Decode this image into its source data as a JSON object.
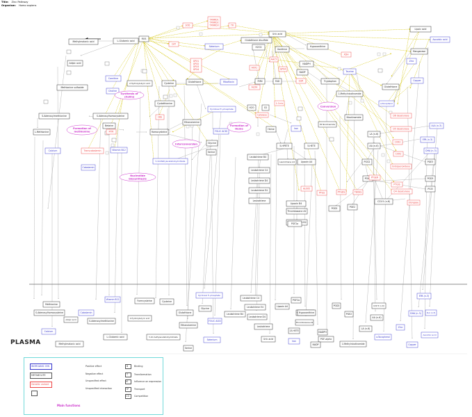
{
  "header": {
    "title_label": "Title:",
    "title_value": "Zinc Pathway",
    "organism_label": "Organism:",
    "organism_value": "Homo sapiens"
  },
  "colors": {
    "metabolite": "#222222",
    "inorganic_ion": "#3333cc",
    "genetic": "#ee4444",
    "function": "#cc33cc",
    "edge_gray": "#999999",
    "edge_gold": "#d4c400",
    "edge_black": "#000000",
    "divider": "#666666",
    "legend_border": "#6fd9d9"
  },
  "plasma_label": "PLASMA",
  "nodes": [
    {
      "id": "methylmalonic",
      "label": "Methylmalonic acid",
      "type": "met"
    },
    {
      "id": "lglutamic",
      "label": "L-Glutamic acid",
      "type": "met"
    },
    {
      "id": "ros",
      "label": "ROS",
      "type": "met"
    },
    {
      "id": "sod",
      "label": "SOD",
      "type": "gene"
    },
    {
      "id": "tr",
      "label": "TR",
      "type": "gene"
    },
    {
      "id": "txnrd",
      "label": "TXNRD1 / TXNRD2 / TXNRD3",
      "type": "gene"
    },
    {
      "id": "cat",
      "label": "CAT",
      "type": "gene"
    },
    {
      "id": "gpx",
      "label": "GPX1 / GPX2 / GPX3 / GPX4",
      "type": "gene"
    },
    {
      "id": "selenium",
      "label": "Selenium",
      "type": "ion"
    },
    {
      "id": "gsh_disulfide",
      "label": "Glutathione disulfide",
      "type": "met"
    },
    {
      "id": "uric",
      "label": "Uric acid",
      "type": "met"
    },
    {
      "id": "h2o2",
      "label": "H2O2",
      "type": "met"
    },
    {
      "id": "xanthine",
      "label": "Xanthine",
      "type": "met"
    },
    {
      "id": "hypoxanthine",
      "label": "Hypoxanthine",
      "type": "met"
    },
    {
      "id": "xdh",
      "label": "XDH",
      "type": "gene"
    },
    {
      "id": "lipoic",
      "label": "Lipoic acid",
      "type": "met"
    },
    {
      "id": "ascorbic_top",
      "label": "Ascorbic acid",
      "type": "ion"
    },
    {
      "id": "manganese",
      "label": "Manganese",
      "type": "met"
    },
    {
      "id": "zinc",
      "label": "Zinc",
      "type": "ion"
    },
    {
      "id": "copper",
      "label": "Copper",
      "type": "ion"
    },
    {
      "id": "adipic",
      "label": "Adipic acid",
      "type": "met"
    },
    {
      "id": "carnitine",
      "label": "Carnitine",
      "type": "ion"
    },
    {
      "id": "choline",
      "label": "Choline",
      "type": "ion"
    },
    {
      "id": "methionine_sulfoxide",
      "label": "Methionine sulfoxide",
      "type": "met"
    },
    {
      "id": "hydroxybutyric",
      "label": "2-Hydroxybutyric acid",
      "type": "met"
    },
    {
      "id": "cysteine",
      "label": "Cysteine",
      "type": "met"
    },
    {
      "id": "glutathione",
      "label": "Glutathione",
      "type": "met"
    },
    {
      "id": "riboflavin",
      "label": "Riboflavin",
      "type": "ion"
    },
    {
      "id": "fmn",
      "label": "FMN",
      "type": "met"
    },
    {
      "id": "fad",
      "label": "FAD",
      "type": "met"
    },
    {
      "id": "nadph",
      "label": "NADPH",
      "type": "met"
    },
    {
      "id": "nadp",
      "label": "NADP",
      "type": "met"
    },
    {
      "id": "taurine",
      "label": "Taurine",
      "type": "ion"
    },
    {
      "id": "gsr",
      "label": "GSR",
      "type": "gene"
    },
    {
      "id": "aox1",
      "label": "AOX1",
      "type": "gene"
    },
    {
      "id": "aldh",
      "label": "ALDH",
      "type": "gene"
    },
    {
      "id": "ahcy",
      "label": "AHCY",
      "type": "gene"
    },
    {
      "id": "gpx4",
      "label": "GPX4",
      "type": "gene"
    },
    {
      "id": "tryptophan",
      "label": "Tryptophan",
      "type": "met"
    },
    {
      "id": "methylnicotinamide",
      "label": "1-Methylnicotinamide",
      "type": "met"
    },
    {
      "id": "tocopherol",
      "label": "a-Tocopherol",
      "type": "ion"
    },
    {
      "id": "glutathione_b",
      "label": "Glutathione",
      "type": "met"
    },
    {
      "id": "sam",
      "label": "S-Adenosylmethionine",
      "type": "met"
    },
    {
      "id": "sah",
      "label": "S-Adenosylhomocysteine",
      "type": "met"
    },
    {
      "id": "cystathionine",
      "label": "Cystathionine",
      "type": "met"
    },
    {
      "id": "betaine",
      "label": "Betaine",
      "type": "met"
    },
    {
      "id": "pyridoxal",
      "label": "Pyridoxal 5'-phosphate",
      "type": "ion"
    },
    {
      "id": "h2o",
      "label": "H2O",
      "type": "met"
    },
    {
      "id": "o2",
      "label": "O2",
      "type": "met"
    },
    {
      "id": "catalase",
      "label": "Catalase",
      "type": "gene"
    },
    {
      "id": "p2",
      "label": "P2 Nicotinamide",
      "type": "met"
    },
    {
      "id": "nicotinamide",
      "label": "Nicotinamide",
      "type": "met"
    },
    {
      "id": "ibeta",
      "label": "IL-1beta",
      "type": "gene"
    },
    {
      "id": "lmethionine",
      "label": "L-Methionine",
      "type": "met"
    },
    {
      "id": "mtr",
      "label": "MTR",
      "type": "gene"
    },
    {
      "id": "homocysteine",
      "label": "Homocysteine",
      "type": "met"
    },
    {
      "id": "cbs",
      "label": "CBS",
      "type": "gene"
    },
    {
      "id": "ethanolamine",
      "label": "Ethanolamine",
      "type": "met"
    },
    {
      "id": "folic",
      "label": "FOLIC ACID",
      "type": "ion"
    },
    {
      "id": "heme",
      "label": "Heme",
      "type": "met"
    },
    {
      "id": "iron",
      "label": "Iron",
      "type": "ion"
    },
    {
      "id": "hpete5",
      "label": "5-HPETE",
      "type": "met"
    },
    {
      "id": "hete5",
      "label": "5-HETE",
      "type": "met"
    },
    {
      "id": "aa",
      "label": "AA (n-6)",
      "type": "met"
    },
    {
      "id": "la",
      "label": "LA (n-6)",
      "type": "met"
    },
    {
      "id": "ala",
      "label": "ALA (n-3)",
      "type": "ion"
    },
    {
      "id": "epa",
      "label": "EPA (n-3)",
      "type": "ion"
    },
    {
      "id": "dha",
      "label": "DHA (n-3)",
      "type": "ion"
    },
    {
      "id": "calcium",
      "label": "Calcium",
      "type": "ion"
    },
    {
      "id": "transcobalamin",
      "label": "Transcobalamin",
      "type": "gene"
    },
    {
      "id": "b12",
      "label": "Vitamin B12",
      "type": "ion"
    },
    {
      "id": "cobalamin",
      "label": "Cobalamin",
      "type": "ion"
    },
    {
      "id": "glycine",
      "label": "Glycine",
      "type": "met"
    },
    {
      "id": "serine",
      "label": "Serine",
      "type": "met"
    },
    {
      "id": "methylenetetrahydrofolate",
      "label": "5,10-Methylenetetrahydrofolate",
      "type": "ion"
    },
    {
      "id": "ltb4",
      "label": "Leukotriene B4",
      "type": "met"
    },
    {
      "id": "lta4",
      "label": "Leukotriene A4",
      "type": "met"
    },
    {
      "id": "ltc4",
      "label": "Leukotriene C4",
      "type": "met"
    },
    {
      "id": "ltd4",
      "label": "Leukotriene D4",
      "type": "met"
    },
    {
      "id": "lte4",
      "label": "Leukotriene E4",
      "type": "met"
    },
    {
      "id": "leukotriene",
      "label": "Leukotriene",
      "type": "met"
    },
    {
      "id": "lipoxin",
      "label": "Lipoxin A4",
      "type": "met"
    },
    {
      "id": "lipoxinb4",
      "label": "Lipoxin B4",
      "type": "met"
    },
    {
      "id": "thromboxane_a2",
      "label": "Thromboxane A2",
      "type": "met"
    },
    {
      "id": "thromboxane_b2",
      "label": "Thromboxane B2",
      "type": "met"
    },
    {
      "id": "pgf2a",
      "label": "PGF2a",
      "type": "met"
    },
    {
      "id": "pgd2",
      "label": "PGD2",
      "type": "met"
    },
    {
      "id": "pge2",
      "label": "PGE2",
      "type": "met"
    },
    {
      "id": "pgh2",
      "label": "PGH2",
      "type": "met"
    },
    {
      "id": "pgg2",
      "label": "PGG2",
      "type": "met"
    },
    {
      "id": "pge3",
      "label": "PGE3",
      "type": "met"
    },
    {
      "id": "pgd3",
      "label": "PGD3",
      "type": "met"
    },
    {
      "id": "pgi3",
      "label": "PGI3",
      "type": "met"
    },
    {
      "id": "c225",
      "label": "C22:5 (n-6)",
      "type": "met"
    },
    {
      "id": "alox5",
      "label": "ALOX5",
      "type": "gene"
    },
    {
      "id": "ptgs",
      "label": "PTGS",
      "type": "gene"
    },
    {
      "id": "ptgds",
      "label": "PTGDS",
      "type": "gene"
    },
    {
      "id": "tbxas",
      "label": "TBXAS",
      "type": "gene"
    },
    {
      "id": "ptger",
      "label": "PTGER",
      "type": "gene"
    },
    {
      "id": "ptgis",
      "label": "PTGIS",
      "type": "gene"
    },
    {
      "id": "cox2",
      "label": "COX2",
      "type": "gene"
    },
    {
      "id": "cox2b",
      "label": "COX2",
      "type": "gene"
    },
    {
      "id": "endoperoxidase",
      "label": "Endoperoxidase",
      "type": "gene"
    },
    {
      "id": "d6",
      "label": "D6 desaturase",
      "type": "gene"
    },
    {
      "id": "d5",
      "label": "D5 desaturase",
      "type": "gene"
    },
    {
      "id": "d4",
      "label": "D4 desaturase",
      "type": "gene"
    },
    {
      "id": "elongase",
      "label": "Elongase",
      "type": "gene"
    },
    {
      "id": "pl_methionine",
      "label": "Methionine",
      "type": "met"
    },
    {
      "id": "pl_sah",
      "label": "S-Adenosylhomocysteine",
      "type": "met"
    },
    {
      "id": "pl_calcium",
      "label": "Calcium",
      "type": "ion"
    },
    {
      "id": "pl_adipic",
      "label": "Adipic acid",
      "type": "met"
    },
    {
      "id": "pl_methylmalonic",
      "label": "Methylmalonic acid",
      "type": "met"
    },
    {
      "id": "pl_cobalamin",
      "label": "Cobalamin",
      "type": "ion"
    },
    {
      "id": "pl_sam",
      "label": "S-Adenosylmethionine",
      "type": "met"
    },
    {
      "id": "pl_glutamic",
      "label": "L-Glutamic acid",
      "type": "met"
    },
    {
      "id": "pl_b12",
      "label": "Vitamin B12",
      "type": "ion"
    },
    {
      "id": "pl_formcysteine",
      "label": "Formcysteine",
      "type": "met"
    },
    {
      "id": "pl_hydroxybutyric",
      "label": "2-Hydroxybutyric acid",
      "type": "met"
    },
    {
      "id": "pl_cysteine",
      "label": "Cysteine",
      "type": "met"
    },
    {
      "id": "pl_glutathione",
      "label": "Glutathione",
      "type": "met"
    },
    {
      "id": "pl_ethanolamine",
      "label": "Ethanolamine",
      "type": "met"
    },
    {
      "id": "pl_methylene",
      "label": "5,10-methylenetetrahydrofolate",
      "type": "met"
    },
    {
      "id": "pl_serine",
      "label": "Serine",
      "type": "met"
    },
    {
      "id": "pl_pyridoxal",
      "label": "Pyridoxal 5'-phosphate",
      "type": "ion"
    },
    {
      "id": "pl_glycine",
      "label": "Glycine",
      "type": "met"
    },
    {
      "id": "pl_folic",
      "label": "FOLIC ACID",
      "type": "ion"
    },
    {
      "id": "pl_selenium",
      "label": "Selenium",
      "type": "ion"
    },
    {
      "id": "pl_ltc4",
      "label": "Leukotriene C4",
      "type": "met"
    },
    {
      "id": "pl_ltb4",
      "label": "Leukotriene B4",
      "type": "met"
    },
    {
      "id": "pl_lte4",
      "label": "Leukotriene E4",
      "type": "met"
    },
    {
      "id": "pl_ltd4",
      "label": "Leukotriene D4",
      "type": "met"
    },
    {
      "id": "pl_leukotriene",
      "label": "Leukotriene",
      "type": "met"
    },
    {
      "id": "pl_lipoxin",
      "label": "Lipoxin A4",
      "type": "met"
    },
    {
      "id": "pl_uric",
      "label": "Uric acid",
      "type": "met"
    },
    {
      "id": "pl_pgf2a",
      "label": "PGF2a",
      "type": "met"
    },
    {
      "id": "pl_thromboxane_b2",
      "label": "Thromboxane B2",
      "type": "met"
    },
    {
      "id": "pl_thromboxane_a2",
      "label": "Thromboxane A2",
      "type": "met"
    },
    {
      "id": "pl_13hete",
      "label": "13-HETE",
      "type": "met"
    },
    {
      "id": "pl_hypoxanthine",
      "label": "Hypoxanthine",
      "type": "met"
    },
    {
      "id": "pl_iron",
      "label": "Iron",
      "type": "ion"
    },
    {
      "id": "pl_pgd2",
      "label": "PGD2",
      "type": "met"
    },
    {
      "id": "pl_pgfalpha",
      "label": "PGF-alpha",
      "type": "met"
    },
    {
      "id": "pl_nadph",
      "label": "NADPH",
      "type": "met"
    },
    {
      "id": "pl_nadp",
      "label": "NADP",
      "type": "met"
    },
    {
      "id": "pl_pge2",
      "label": "PGE2",
      "type": "met"
    },
    {
      "id": "pl_c225",
      "label": "C22:5 (n-6)",
      "type": "met"
    },
    {
      "id": "pl_aa",
      "label": "AA (n-6)",
      "type": "met"
    },
    {
      "id": "pl_la",
      "label": "LA (n-6)",
      "type": "met"
    },
    {
      "id": "pl_methylnicotinamide",
      "label": "1-Methylnicotinamide",
      "type": "met"
    },
    {
      "id": "pl_tocopherol",
      "label": "a-Tocopherol",
      "type": "ion"
    },
    {
      "id": "pl_epa",
      "label": "EPA (n-3)",
      "type": "ion"
    },
    {
      "id": "pl_dha",
      "label": "DHA (n-3)",
      "type": "ion"
    },
    {
      "id": "pl_ala",
      "label": "ALA (n-3)",
      "type": "ion"
    },
    {
      "id": "pl_zinc",
      "label": "Zinc",
      "type": "ion"
    },
    {
      "id": "pl_copper",
      "label": "Copper",
      "type": "ion"
    },
    {
      "id": "pl_ascorbic",
      "label": "Ascorbic acid",
      "type": "ion"
    }
  ],
  "functions": [
    {
      "id": "fn_choline",
      "label": "Synthesis of choline"
    },
    {
      "id": "fn_methionine",
      "label": "Formation of methionine"
    },
    {
      "id": "fn_interconversion",
      "label": "Interconversion"
    },
    {
      "id": "fn_heme",
      "label": "Formation of Heme"
    },
    {
      "id": "fn_conversion",
      "label": "Conversion"
    },
    {
      "id": "fn_nucleotide",
      "label": "Nucleotide biosynthesis"
    }
  ],
  "legend": {
    "node_types": [
      "INORGANIC ION",
      "METABOLITE",
      "Genetic variant"
    ],
    "effects": [
      "Positive effect",
      "Negative effect",
      "Unspecified effect",
      "Unspecified interaction"
    ],
    "interactions": [
      {
        "code": "B",
        "label": "Binding"
      },
      {
        "code": "T",
        "label": "Transformation"
      },
      {
        "code": "IE",
        "label": "Influence on expression"
      },
      {
        "code": "TP",
        "label": "Transport"
      },
      {
        "code": "CO",
        "label": "Competition"
      }
    ],
    "main_functions_label": "Main functions"
  }
}
